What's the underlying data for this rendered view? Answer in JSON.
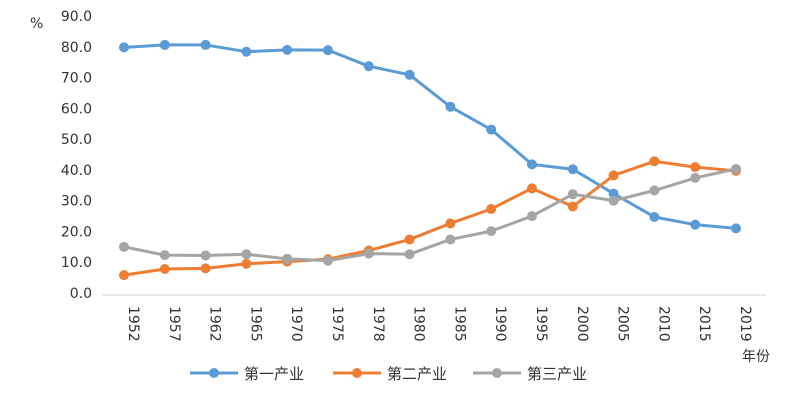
{
  "chart_data": {
    "type": "line",
    "title": "",
    "ylabel": "%",
    "xlabel": "年份",
    "ylim": [
      0,
      90
    ],
    "yticks": [
      "0.0",
      "10.0",
      "20.0",
      "30.0",
      "40.0",
      "50.0",
      "60.0",
      "70.0",
      "80.0",
      "90.0"
    ],
    "categories": [
      "1952",
      "1957",
      "1962",
      "1965",
      "1970",
      "1975",
      "1978",
      "1980",
      "1985",
      "1990",
      "1995",
      "2000",
      "2005",
      "2010",
      "2015",
      "2019"
    ],
    "grid": false,
    "legend_position": "bottom",
    "series": [
      {
        "name": "第一产业",
        "color": "#5b9bd5",
        "values": [
          79.8,
          80.6,
          80.6,
          78.4,
          79.0,
          78.9,
          73.7,
          70.9,
          60.5,
          53.1,
          41.8,
          40.2,
          32.3,
          24.7,
          22.2,
          21.0
        ]
      },
      {
        "name": "第二产业",
        "color": "#ed7d31",
        "values": [
          5.8,
          7.8,
          8.0,
          9.5,
          10.2,
          11.0,
          13.8,
          17.4,
          22.6,
          27.3,
          34.0,
          28.1,
          38.2,
          42.8,
          40.9,
          39.7
        ]
      },
      {
        "name": "第三产业",
        "color": "#a5a5a5",
        "values": [
          15.0,
          12.3,
          12.2,
          12.6,
          11.1,
          10.5,
          12.8,
          12.6,
          17.4,
          20.1,
          25.0,
          32.1,
          30.0,
          33.3,
          37.4,
          40.3
        ]
      }
    ]
  }
}
